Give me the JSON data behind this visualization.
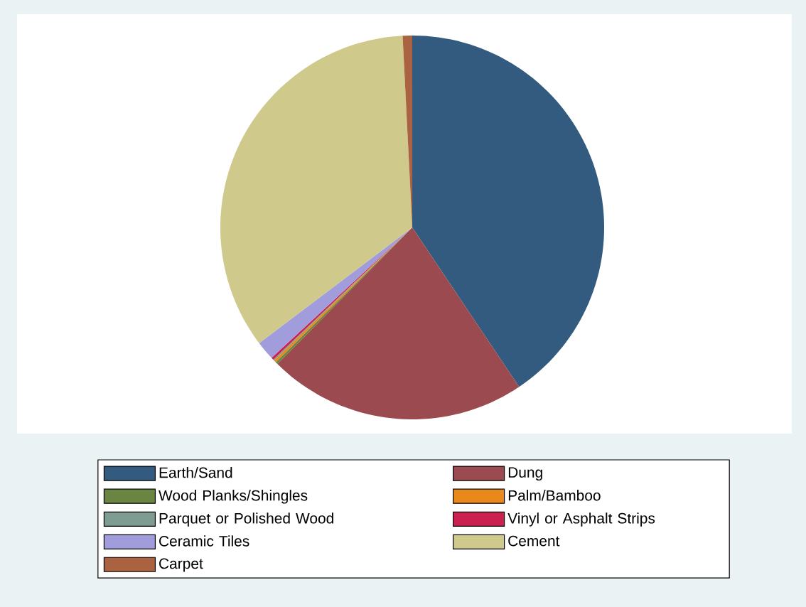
{
  "chart_data": {
    "type": "pie",
    "categories": [
      "Earth/Sand",
      "Dung",
      "Wood Planks/Shingles",
      "Palm/Bamboo",
      "Parquet  or Polished Wood",
      "Vinyl or Asphalt Strips",
      "Ceramic Tiles",
      "Cement",
      "Carpet"
    ],
    "values": [
      40.6,
      21.8,
      0.2,
      0.2,
      0.1,
      0.2,
      1.6,
      34.5,
      0.8
    ],
    "colors": [
      "#335b7f",
      "#9b4a50",
      "#6a8442",
      "#e8891a",
      "#7f9c93",
      "#cc2050",
      "#a19cdc",
      "#cfc98c",
      "#ab6241"
    ],
    "legend": "bottom"
  }
}
